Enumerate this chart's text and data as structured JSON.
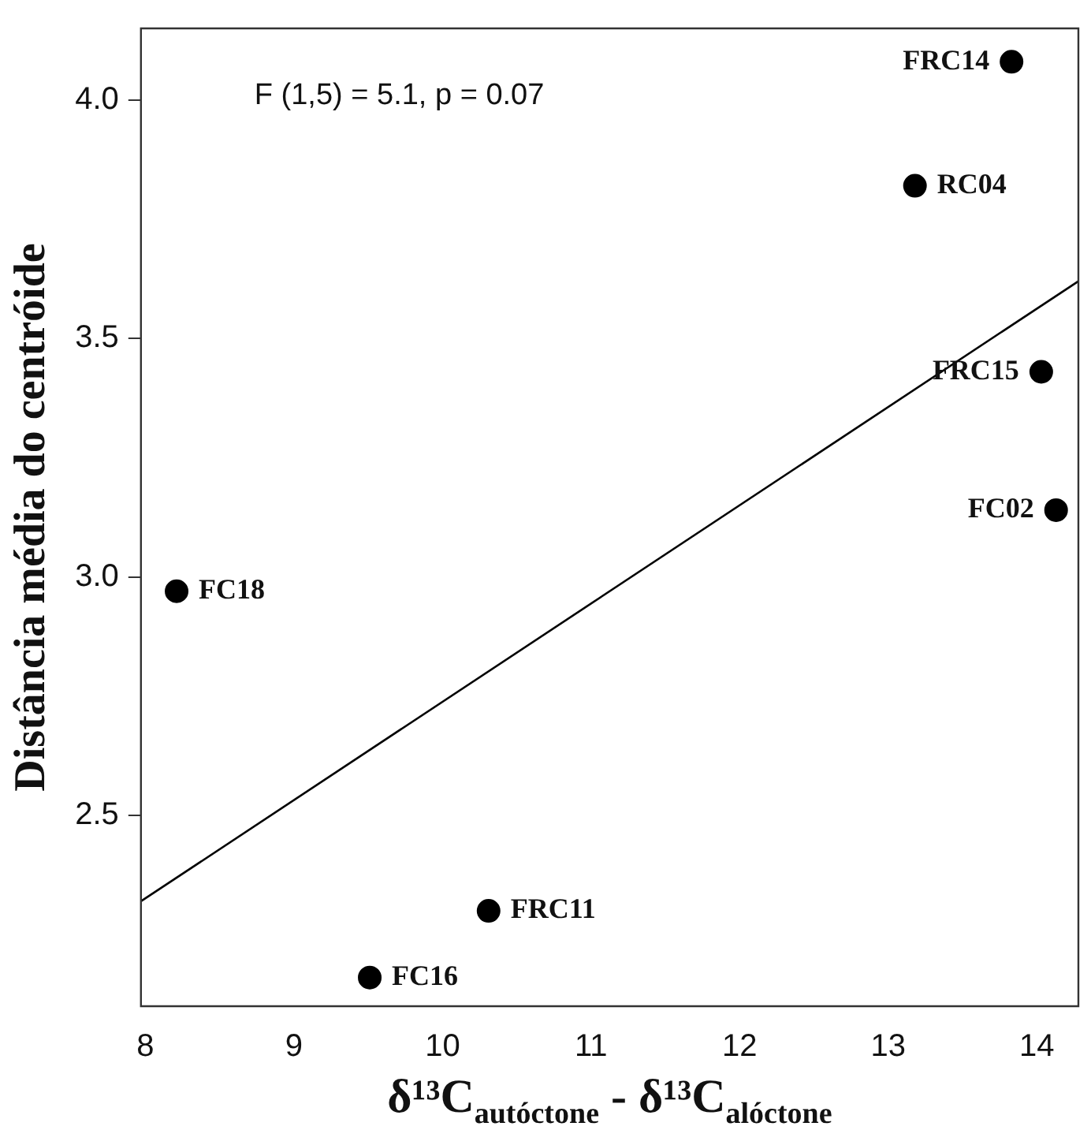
{
  "chart_data": {
    "type": "scatter",
    "xlabel": "δ¹³C$_{autóctone}$ - δ¹³C$_{alóctone}$",
    "ylabel": "Distância média do centróide",
    "x": [
      13.83,
      13.18,
      14.03,
      14.13,
      8.21,
      10.31,
      9.51
    ],
    "values": [
      4.08,
      3.82,
      3.43,
      3.14,
      2.97,
      2.3,
      2.16
    ],
    "color": "#000000",
    "marker": "circle",
    "series": [
      {
        "type": "line",
        "color": "#000000",
        "marker": "none",
        "x": [
          7.97,
          14.28
        ],
        "values": [
          2.32,
          3.62
        ],
        "line_style": "solid"
      }
    ],
    "xlim": [
      7.97,
      14.28
    ],
    "ylim": [
      2.1,
      4.15
    ],
    "xticks": [
      8,
      9,
      10,
      11,
      12,
      13,
      14
    ],
    "yticks": [
      {
        "value": 2.5,
        "label": "2.5"
      },
      {
        "value": 3,
        "label": "3.0"
      },
      {
        "value": 3.5,
        "label": "3.5"
      },
      {
        "value": 4,
        "label": "4.0"
      }
    ],
    "annotations": [
      "F (1,5) = 5.1, p = 0.07",
      {
        "text": "FRC14",
        "x": 13.83,
        "y": 4.08
      },
      {
        "text": "RC04",
        "x": 13.18,
        "y": 3.82
      },
      {
        "text": "FRC15",
        "x": 14.03,
        "y": 3.43
      },
      {
        "text": "FC02",
        "x": 14.13,
        "y": 3.14
      },
      {
        "text": "FC18",
        "x": 8.21,
        "y": 2.97
      },
      {
        "text": "FRC11",
        "x": 10.31,
        "y": 2.3
      },
      {
        "text": "FC16",
        "x": 9.51,
        "y": 2.16
      }
    ],
    "grid": false,
    "legend": false
  }
}
